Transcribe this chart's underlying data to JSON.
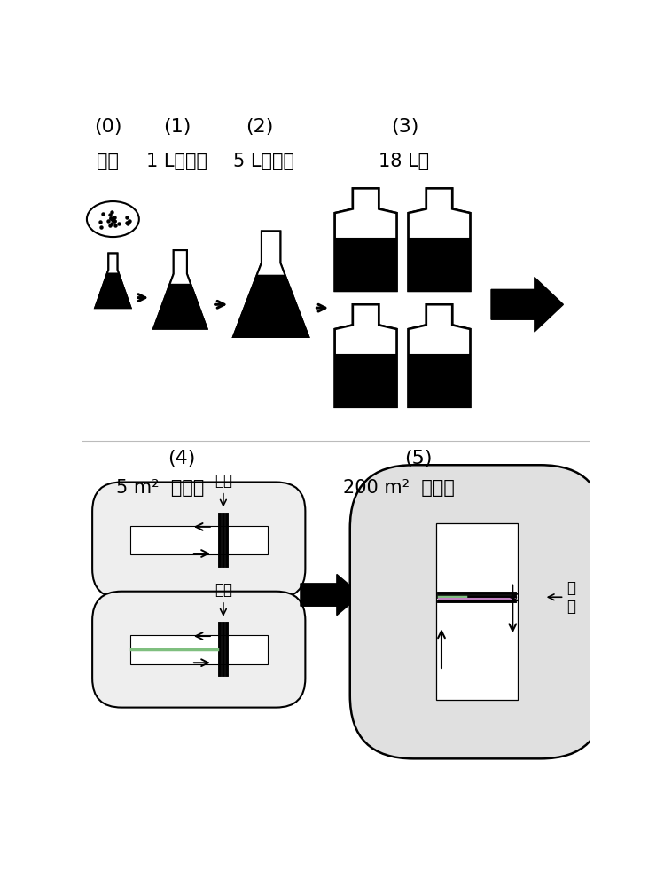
{
  "bg_color": "#ffffff",
  "black": "#000000",
  "white": "#ffffff",
  "light_gray": "#e0e0e0",
  "green_line": "#7fbf7f",
  "purple_line": "#c080c0",
  "step_labels": [
    "(0)",
    "(1)",
    "(2)",
    "(3)",
    "(4)",
    "(5)"
  ],
  "flask_labels": [
    "保种",
    "1 L三角瓶",
    "5 L三角瓶",
    "18 L桶"
  ],
  "pond4_label": "5 m²  跑道池",
  "pond5_label": "200 m²  跑道池",
  "impeller_label": "叶轮",
  "figsize": [
    7.4,
    10.0
  ],
  "dpi": 100
}
